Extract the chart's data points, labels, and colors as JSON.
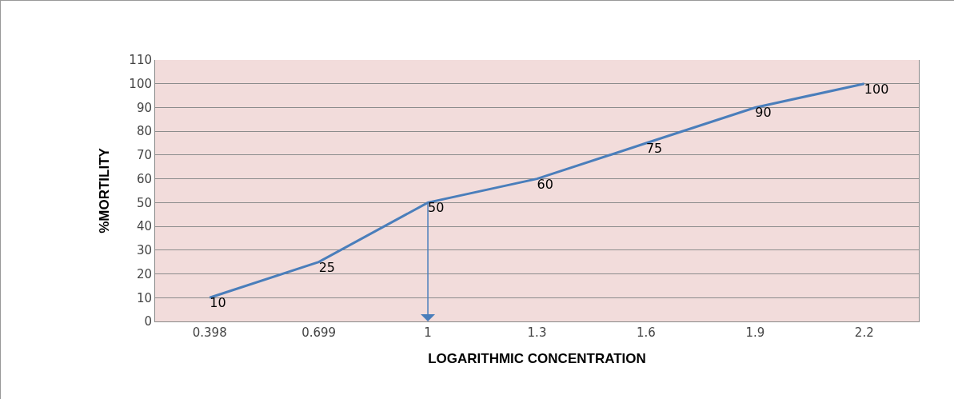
{
  "chart_data": {
    "type": "line",
    "xlabel": "LOGARITHMIC CONCENTRATION",
    "ylabel": "%MORTILITY",
    "categories": [
      "0.398",
      "0.699",
      "1",
      "1.3",
      "1.6",
      "1.9",
      "2.2"
    ],
    "series": [
      {
        "color": "#4a7ebb",
        "values": [
          10,
          25,
          50,
          60,
          75,
          90,
          100
        ]
      }
    ],
    "ylim": [
      0,
      110
    ],
    "yticks": [
      0,
      10,
      20,
      30,
      40,
      50,
      60,
      70,
      80,
      90,
      100,
      110
    ],
    "grid": "y",
    "marker": "none",
    "line_style": "solid",
    "data_labels": true,
    "ref_lines": [
      {
        "axis": "x",
        "value": "1",
        "color": "#4a7ebb"
      }
    ]
  }
}
